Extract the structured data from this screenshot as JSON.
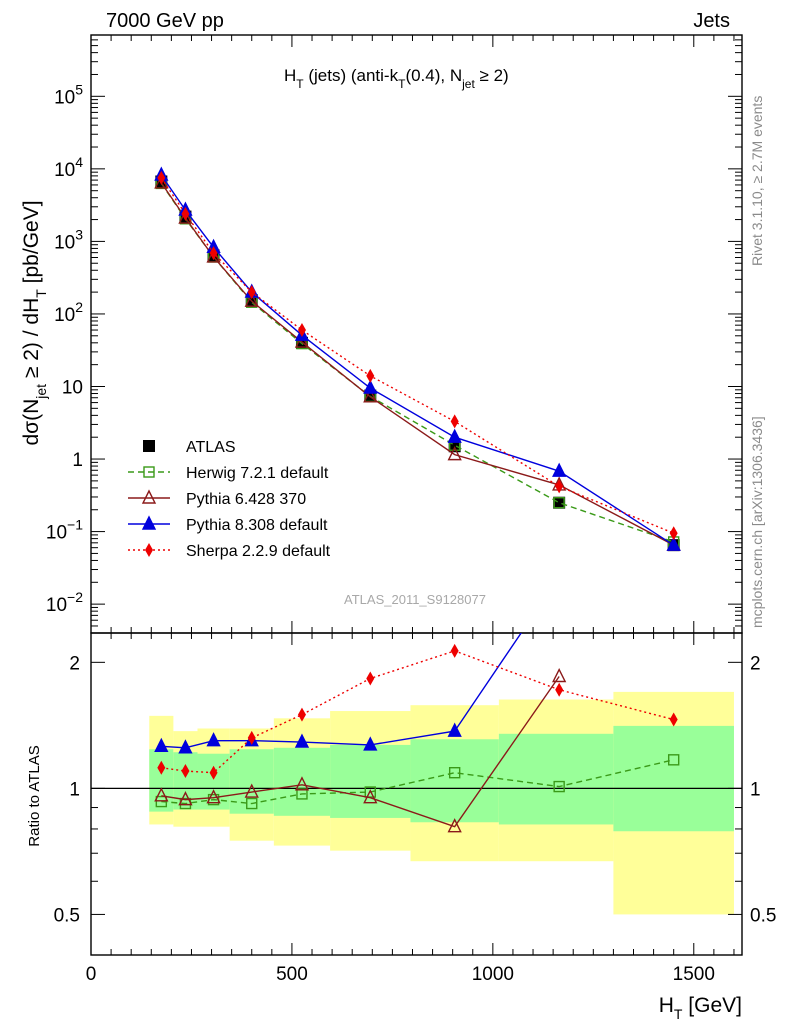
{
  "header": {
    "left_label": "7000 GeV pp",
    "right_label": "Jets",
    "analysis_id": "ATLAS_2011_S9128077",
    "side_top": "Rivet 3.1.10, ≥ 2.7M events",
    "side_bottom": "mcplots.cern.ch [arXiv:1306.3436]"
  },
  "chart_data": [
    {
      "type": "line",
      "panel": "main",
      "title": "H_T (jets) (anti-k_T(0.4), N_jet ≥ 2)",
      "title_parts": {
        "a": "H",
        "a_sub": "T",
        "b": " (jets) (anti-k",
        "b_sub": "T",
        "c": "(0.4), N",
        "c_sub": "jet",
        "d": " ≥ 2)"
      },
      "ylabel": "dσ(N_jet ≥ 2) / dH_T [pb/GeV]",
      "ylabel_parts": {
        "a": "dσ(N",
        "a_sub": "jet",
        "b": " ≥ 2) / dH",
        "b_sub": "T",
        "c": " [pb/GeV]"
      },
      "y_scale": "log",
      "xlim": [
        0,
        1620
      ],
      "ylim": [
        0.004,
        700000
      ],
      "y_ticks": [
        {
          "value": 0.01,
          "base": "10",
          "exp": "−2"
        },
        {
          "value": 0.1,
          "base": "10",
          "exp": "−1"
        },
        {
          "value": 1,
          "base": "1",
          "exp": ""
        },
        {
          "value": 10,
          "base": "10",
          "exp": ""
        },
        {
          "value": 100,
          "base": "10",
          "exp": "2"
        },
        {
          "value": 1000,
          "base": "10",
          "exp": "3"
        },
        {
          "value": 10000,
          "base": "10",
          "exp": "4"
        },
        {
          "value": 100000,
          "base": "10",
          "exp": "5"
        }
      ],
      "legend_position": "bottom-left",
      "x": [
        175,
        235,
        305,
        400,
        525,
        695,
        905,
        1165,
        1450
      ],
      "bins": [
        [
          145,
          205
        ],
        [
          205,
          265
        ],
        [
          265,
          345
        ],
        [
          345,
          455
        ],
        [
          455,
          595
        ],
        [
          595,
          795
        ],
        [
          795,
          1015
        ],
        [
          1015,
          1300
        ],
        [
          1300,
          1600
        ]
      ],
      "series": [
        {
          "name": "ATLAS",
          "color": "#000000",
          "marker": "square-filled",
          "dash": "none",
          "values": [
            6700,
            2200,
            640,
            155,
            40,
            7.5,
            1.5,
            0.25,
            0.065
          ]
        },
        {
          "name": "Herwig 7.2.1 default",
          "color": "#3a9a18",
          "marker": "square-open",
          "dash": "dashed",
          "values": [
            6300,
            2050,
            610,
            145,
            39,
            7.3,
            1.55,
            0.25,
            0.072
          ]
        },
        {
          "name": "Pythia 6.428 370",
          "color": "#8b1a1a",
          "marker": "triangle-open",
          "dash": "solid",
          "values": [
            6400,
            2100,
            610,
            150,
            41,
            7.2,
            1.15,
            0.44,
            0.065
          ]
        },
        {
          "name": "Pythia 8.308 default",
          "color": "#0000dd",
          "marker": "triangle-filled",
          "dash": "solid",
          "values": [
            8200,
            2700,
            830,
            200,
            51,
            9.5,
            2.0,
            0.68,
            0.065
          ]
        },
        {
          "name": "Sherpa 2.2.9 default",
          "color": "#ee0000",
          "marker": "diamond-filled",
          "dash": "dotted",
          "values": [
            7500,
            2400,
            690,
            200,
            60,
            14,
            3.3,
            0.42,
            0.095
          ]
        }
      ]
    },
    {
      "type": "line",
      "panel": "ratio",
      "ylabel": "Ratio to ATLAS",
      "xlabel": "H_T [GeV]",
      "xlabel_parts": {
        "a": "H",
        "a_sub": "T",
        "b": " [GeV]"
      },
      "y_scale": "log",
      "xlim": [
        0,
        1620
      ],
      "ylim": [
        0.4,
        2.35
      ],
      "x_ticks": [
        0,
        500,
        1000,
        1500
      ],
      "y_ticks": [
        0.5,
        1,
        2
      ],
      "reference": 1,
      "x": [
        175,
        235,
        305,
        400,
        525,
        695,
        905,
        1165,
        1450
      ],
      "bins": [
        [
          145,
          205
        ],
        [
          205,
          265
        ],
        [
          265,
          345
        ],
        [
          345,
          455
        ],
        [
          455,
          595
        ],
        [
          595,
          795
        ],
        [
          795,
          1015
        ],
        [
          1015,
          1300
        ],
        [
          1300,
          1600
        ]
      ],
      "band_green": [
        [
          0.88,
          1.24
        ],
        [
          0.89,
          1.22
        ],
        [
          0.89,
          1.21
        ],
        [
          0.87,
          1.24
        ],
        [
          0.86,
          1.25
        ],
        [
          0.85,
          1.27
        ],
        [
          0.83,
          1.31
        ],
        [
          0.82,
          1.35
        ],
        [
          0.79,
          1.41
        ]
      ],
      "band_yellow": [
        [
          0.82,
          1.49
        ],
        [
          0.81,
          1.37
        ],
        [
          0.81,
          1.39
        ],
        [
          0.75,
          1.39
        ],
        [
          0.73,
          1.47
        ],
        [
          0.71,
          1.53
        ],
        [
          0.67,
          1.58
        ],
        [
          0.67,
          1.63
        ],
        [
          0.5,
          1.7
        ]
      ],
      "series": [
        {
          "name": "Herwig 7.2.1 default",
          "color": "#3a9a18",
          "marker": "square-open",
          "dash": "dashed",
          "values": [
            0.93,
            0.92,
            0.94,
            0.92,
            0.97,
            0.98,
            1.09,
            1.01,
            1.17
          ]
        },
        {
          "name": "Pythia 6.428 370",
          "color": "#8b1a1a",
          "marker": "triangle-open",
          "dash": "solid",
          "values": [
            0.96,
            0.94,
            0.95,
            0.98,
            1.02,
            0.95,
            0.81,
            1.85,
            null
          ]
        },
        {
          "name": "Pythia 8.308 default",
          "color": "#0000dd",
          "marker": "triangle-filled",
          "dash": "solid",
          "values": [
            1.26,
            1.25,
            1.3,
            1.3,
            1.29,
            1.27,
            1.37,
            3.2,
            null
          ]
        },
        {
          "name": "Sherpa 2.2.9 default",
          "color": "#ee0000",
          "marker": "diamond-filled",
          "dash": "dotted",
          "values": [
            1.12,
            1.1,
            1.09,
            1.32,
            1.5,
            1.83,
            2.13,
            1.72,
            1.46
          ]
        }
      ]
    }
  ]
}
